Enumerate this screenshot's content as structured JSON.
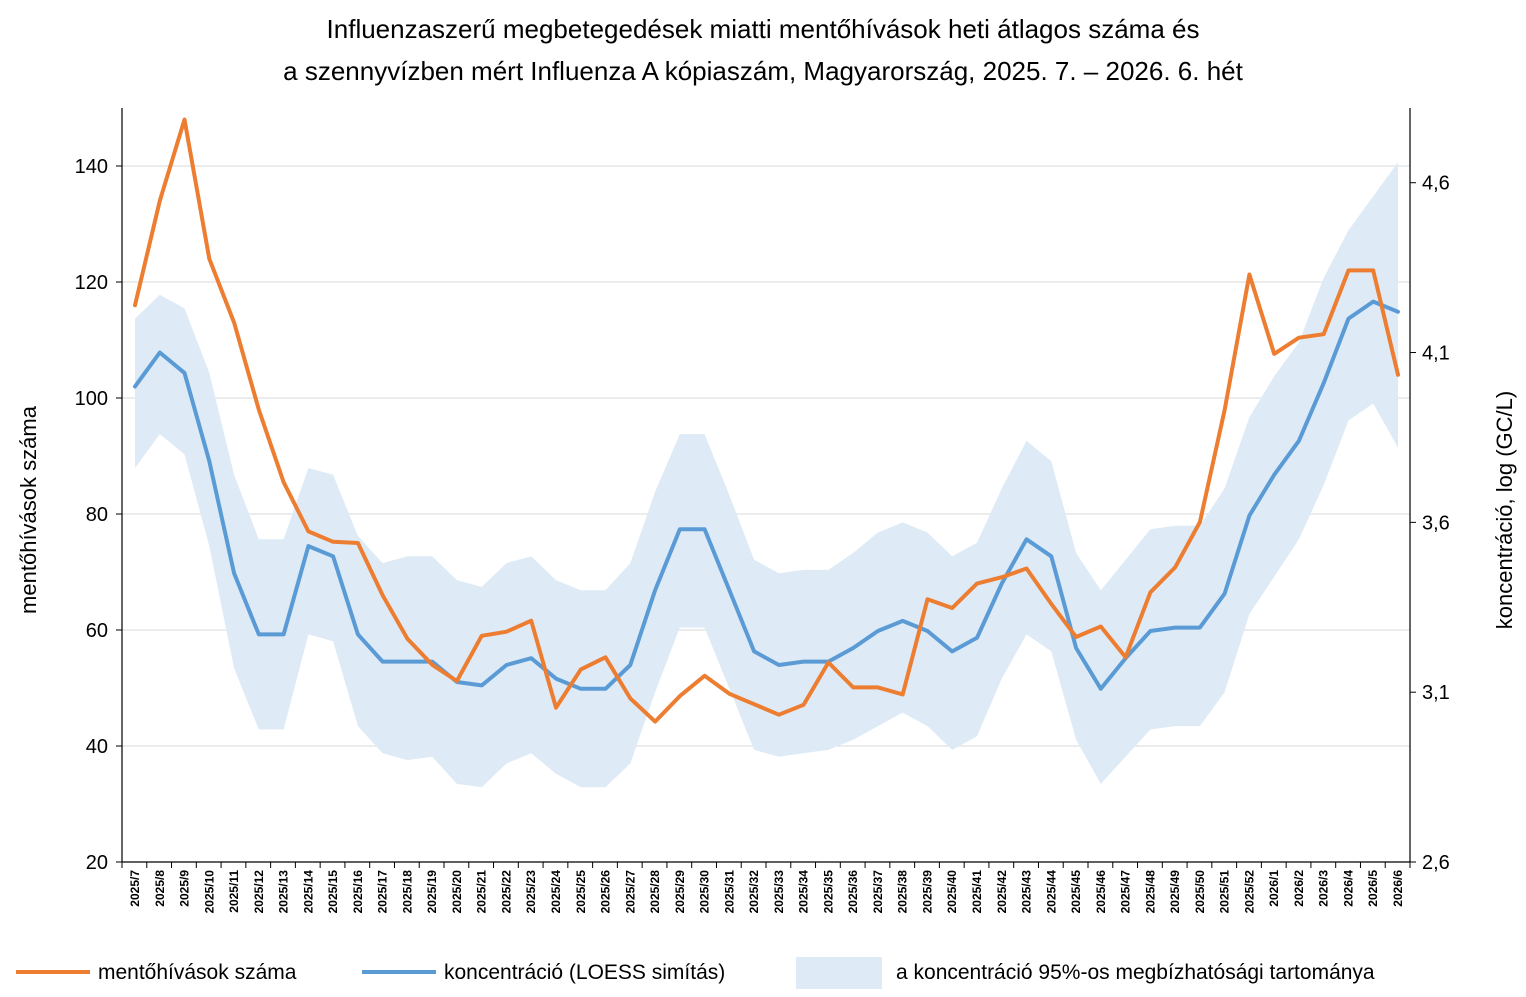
{
  "chart_data": {
    "type": "line",
    "title_lines": [
      "Influenzaszerű megbetegedések miatti mentőhívások heti átlagos száma és",
      "a szennyvízben mért Influenza A kópiaszám, Magyarország, 2025. 7. – 2026. 6. hét"
    ],
    "ylabel": "mentőhívások száma",
    "y2label": "koncentráció, log (GC/L)",
    "ylim": [
      20,
      150
    ],
    "y_ticks": [
      "20",
      "40",
      "60",
      "80",
      "100",
      "120",
      "140"
    ],
    "y2lim": [
      2.6,
      4.82
    ],
    "y2_ticks": [
      "2,6",
      "3,1",
      "3,6",
      "4,1",
      "4,6"
    ],
    "grid": true,
    "legend_position": "bottom",
    "categories": [
      "2025/7",
      "2025/8",
      "2025/9",
      "2025/10",
      "2025/11",
      "2025/12",
      "2025/13",
      "2025/14",
      "2025/15",
      "2025/16",
      "2025/17",
      "2025/18",
      "2025/19",
      "2025/20",
      "2025/21",
      "2025/22",
      "2025/23",
      "2025/24",
      "2025/25",
      "2025/26",
      "2025/27",
      "2025/28",
      "2025/29",
      "2025/30",
      "2025/31",
      "2025/32",
      "2025/33",
      "2025/34",
      "2025/35",
      "2025/36",
      "2025/37",
      "2025/38",
      "2025/39",
      "2025/40",
      "2025/41",
      "2025/42",
      "2025/43",
      "2025/44",
      "2025/45",
      "2025/46",
      "2025/47",
      "2025/48",
      "2025/49",
      "2025/50",
      "2025/51",
      "2025/52",
      "2026/1",
      "2026/2",
      "2026/3",
      "2026/4",
      "2026/5",
      "2026/6"
    ],
    "series": [
      {
        "name": "mentőhívások száma",
        "axis": "left",
        "color": "#ED7D31",
        "values": [
          116,
          134,
          148,
          124,
          113,
          98,
          85.5,
          77,
          75.2,
          75,
          66,
          58.5,
          54,
          51.2,
          59,
          59.7,
          61.6,
          46.6,
          53.2,
          55.3,
          48.2,
          44.2,
          48.6,
          52.1,
          49,
          47.2,
          45.4,
          47.1,
          54.4,
          50.1,
          50.1,
          48.9,
          65.3,
          63.8,
          68,
          69.1,
          70.6,
          64.5,
          58.8,
          60.6,
          55.3,
          66.5,
          70.8,
          78.6,
          97.9,
          121.3,
          107.6,
          110.4,
          111,
          122,
          122,
          104
        ]
      },
      {
        "name": "koncentráció (LOESS simítás)",
        "axis": "right",
        "color": "#5B9BD5",
        "values": [
          4.0,
          4.1,
          4.04,
          3.78,
          3.45,
          3.27,
          3.27,
          3.53,
          3.5,
          3.27,
          3.19,
          3.19,
          3.19,
          3.13,
          3.12,
          3.18,
          3.2,
          3.14,
          3.11,
          3.11,
          3.18,
          3.4,
          3.58,
          3.58,
          3.4,
          3.22,
          3.18,
          3.19,
          3.19,
          3.23,
          3.28,
          3.31,
          3.28,
          3.22,
          3.26,
          3.42,
          3.55,
          3.5,
          3.23,
          3.11,
          3.2,
          3.28,
          3.29,
          3.29,
          3.39,
          3.62,
          3.74,
          3.84,
          4.01,
          4.2,
          4.25,
          4.22
        ]
      },
      {
        "name": "a koncentráció 95%-os megbízhatósági tartománya",
        "axis": "right",
        "color": "#DEEBF7",
        "upper": [
          4.2,
          4.27,
          4.23,
          4.04,
          3.74,
          3.55,
          3.55,
          3.76,
          3.74,
          3.56,
          3.48,
          3.5,
          3.5,
          3.43,
          3.41,
          3.48,
          3.5,
          3.43,
          3.4,
          3.4,
          3.48,
          3.69,
          3.86,
          3.86,
          3.68,
          3.49,
          3.45,
          3.46,
          3.46,
          3.51,
          3.57,
          3.6,
          3.57,
          3.5,
          3.54,
          3.7,
          3.84,
          3.78,
          3.51,
          3.4,
          3.49,
          3.58,
          3.59,
          3.59,
          3.7,
          3.91,
          4.03,
          4.13,
          4.32,
          4.46,
          4.56,
          4.66
        ],
        "lower": [
          3.76,
          3.86,
          3.8,
          3.53,
          3.17,
          2.99,
          2.99,
          3.27,
          3.25,
          3.0,
          2.92,
          2.9,
          2.91,
          2.83,
          2.82,
          2.89,
          2.92,
          2.86,
          2.82,
          2.82,
          2.89,
          3.1,
          3.29,
          3.29,
          3.11,
          2.93,
          2.91,
          2.92,
          2.93,
          2.96,
          3.0,
          3.04,
          3.0,
          2.93,
          2.97,
          3.14,
          3.27,
          3.22,
          2.96,
          2.83,
          2.91,
          2.99,
          3.0,
          3.0,
          3.1,
          3.33,
          3.44,
          3.55,
          3.71,
          3.9,
          3.95,
          3.82
        ]
      }
    ]
  }
}
